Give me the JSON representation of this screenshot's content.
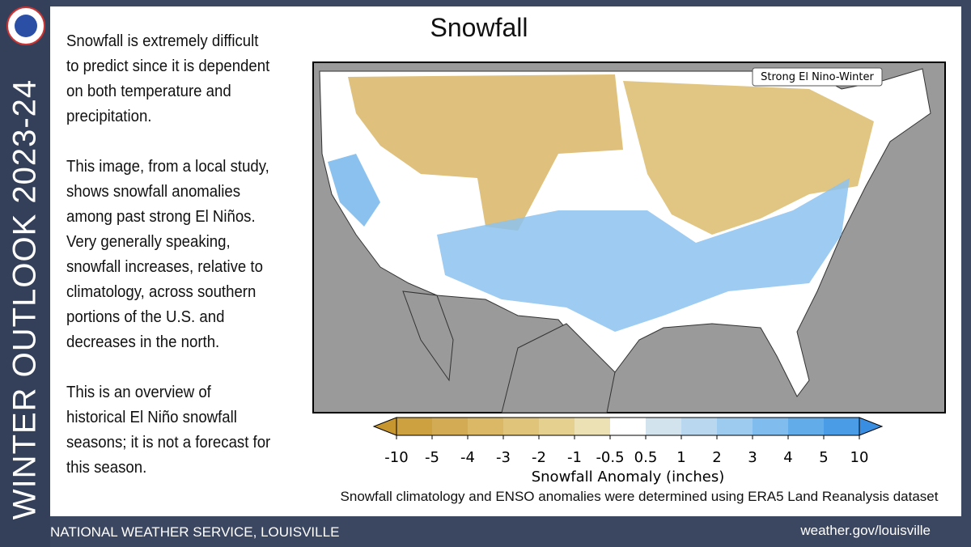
{
  "sidebar": {
    "title": "WINTER OUTLOOK 2023-24"
  },
  "slide": {
    "title": "Snowfall",
    "paragraphs": [
      [
        "Snowfall is extremely difficult",
        "to predict since it is dependent",
        "on both temperature and",
        "precipitation."
      ],
      [
        "This image, from a local study,",
        "shows snowfall anomalies",
        "among past strong El Niños.",
        "Very generally speaking,",
        "snowfall increases, relative to",
        "climatology, across southern",
        "portions of the U.S. and",
        "decreases in the north."
      ],
      [
        "This is an overview of",
        "historical El Niño snowfall",
        "seasons; it is not a forecast for",
        "this season."
      ]
    ]
  },
  "map": {
    "label": "Strong El Nino-Winter",
    "colorbar": {
      "ticks": [
        -10,
        -5,
        -4,
        -3,
        -2,
        -1,
        -0.5,
        0.5,
        1,
        2,
        3,
        4,
        5,
        10
      ],
      "colors": [
        "#cda040",
        "#d4ab55",
        "#dab865",
        "#e0c47a",
        "#e6d08f",
        "#ece0b5",
        "#ffffff",
        "#d3e3ee",
        "#b9d8f0",
        "#9dcbf0",
        "#80bcee",
        "#62acea",
        "#4a9ce6"
      ],
      "under_color": "#c8962e",
      "over_color": "#3a8ee2",
      "label": "Snowfall Anomaly (inches)"
    },
    "caption": "Snowfall climatology and ENSO anomalies were determined using ERA5 Land Reanalysis dataset"
  },
  "footer": {
    "left": "NATIONAL WEATHER SERVICE, LOUISVILLE",
    "right": "weather.gov/louisville"
  }
}
